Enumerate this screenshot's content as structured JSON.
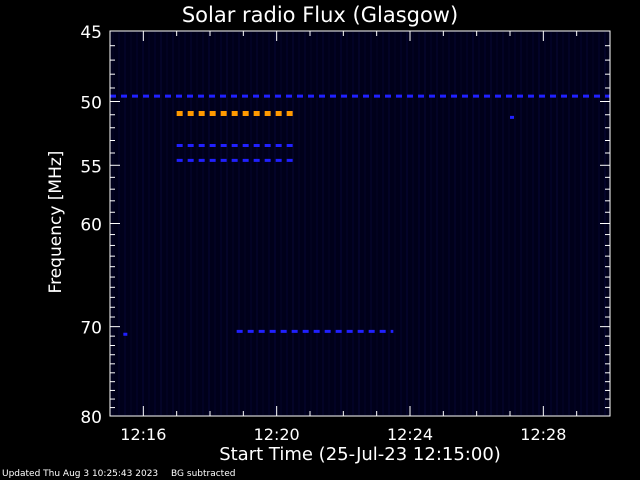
{
  "title": "Solar radio Flux (Glasgow)",
  "footer": {
    "updated": "Updated Thu Aug  3 10:25:43 2023",
    "note": "BG subtracted"
  },
  "chart_data": {
    "type": "heatmap",
    "title": "Solar radio Flux (Glasgow)",
    "xlabel": "Start Time (25-Jul-23 12:15:00)",
    "ylabel": "Frequency [MHz]",
    "x_unit": "time (HH:MM, 25-Jul-23)",
    "xlim": [
      "12:15",
      "12:30"
    ],
    "ylim": [
      45,
      80
    ],
    "y_scale": "log",
    "x_ticks": [
      "12:16",
      "12:20",
      "12:24",
      "12:28"
    ],
    "y_ticks": [
      45,
      50,
      55,
      60,
      70,
      80
    ],
    "grid": false,
    "colors": {
      "background": "#000000",
      "plot_background": "#00001a",
      "low": "#1a1a80",
      "medium": "#2020ff",
      "high": "#ff9900"
    },
    "features": [
      {
        "description": "continuous band",
        "freq_mhz": 49.6,
        "t_start": "12:15",
        "t_end": "12:30",
        "level": "medium"
      },
      {
        "description": "bright band",
        "freq_mhz": 50.9,
        "t_start": "12:17",
        "t_end": "12:20.5",
        "level": "high"
      },
      {
        "description": "band",
        "freq_mhz": 53.4,
        "t_start": "12:17",
        "t_end": "12:20.5",
        "level": "medium"
      },
      {
        "description": "band",
        "freq_mhz": 54.6,
        "t_start": "12:17",
        "t_end": "12:20.5",
        "level": "medium"
      },
      {
        "description": "band",
        "freq_mhz": 70.5,
        "t_start": "12:18.8",
        "t_end": "12:23.5",
        "level": "medium"
      },
      {
        "description": "spot",
        "freq_mhz": 70.8,
        "t_start": "12:15.4",
        "t_end": "12:15.5",
        "level": "medium"
      },
      {
        "description": "spot",
        "freq_mhz": 51.2,
        "t_start": "12:27",
        "t_end": "12:27.1",
        "level": "medium"
      }
    ]
  }
}
